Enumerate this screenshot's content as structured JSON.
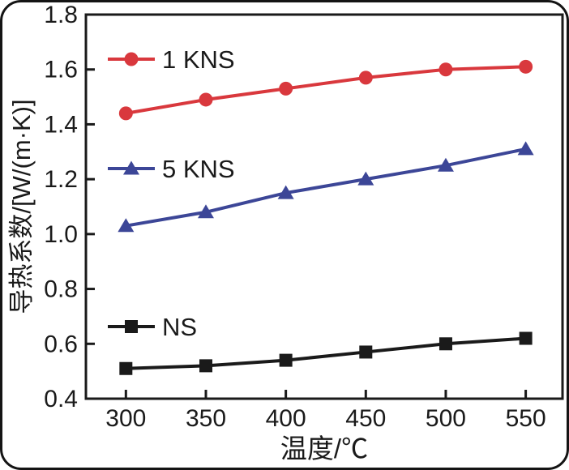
{
  "chart_data": {
    "type": "line",
    "title": "",
    "xlabel": "温度/℃",
    "ylabel": "导热系数/[W/(m·K)]",
    "x": [
      300,
      350,
      400,
      450,
      500,
      550
    ],
    "x_ticks": [
      300,
      350,
      400,
      450,
      500,
      550
    ],
    "y_ticks": [
      0.4,
      0.6,
      0.8,
      1.0,
      1.2,
      1.4,
      1.6,
      1.8
    ],
    "xlim": [
      275,
      573
    ],
    "ylim": [
      0.4,
      1.8
    ],
    "grid": false,
    "legend_position": "inline-left-stacked",
    "series": [
      {
        "name": "1 KNS",
        "marker": "circle",
        "color": "#d9383d",
        "values": [
          1.44,
          1.49,
          1.53,
          1.57,
          1.6,
          1.61
        ]
      },
      {
        "name": "5 KNS",
        "marker": "triangle",
        "color": "#3c4697",
        "values": [
          1.03,
          1.08,
          1.15,
          1.2,
          1.25,
          1.31
        ]
      },
      {
        "name": "NS",
        "marker": "square",
        "color": "#1a1a1a",
        "values": [
          0.51,
          0.52,
          0.54,
          0.57,
          0.6,
          0.62
        ]
      }
    ],
    "colors": {
      "axis": "#1a1a1a",
      "text": "#1a1a1a",
      "background": "#ffffff"
    }
  }
}
